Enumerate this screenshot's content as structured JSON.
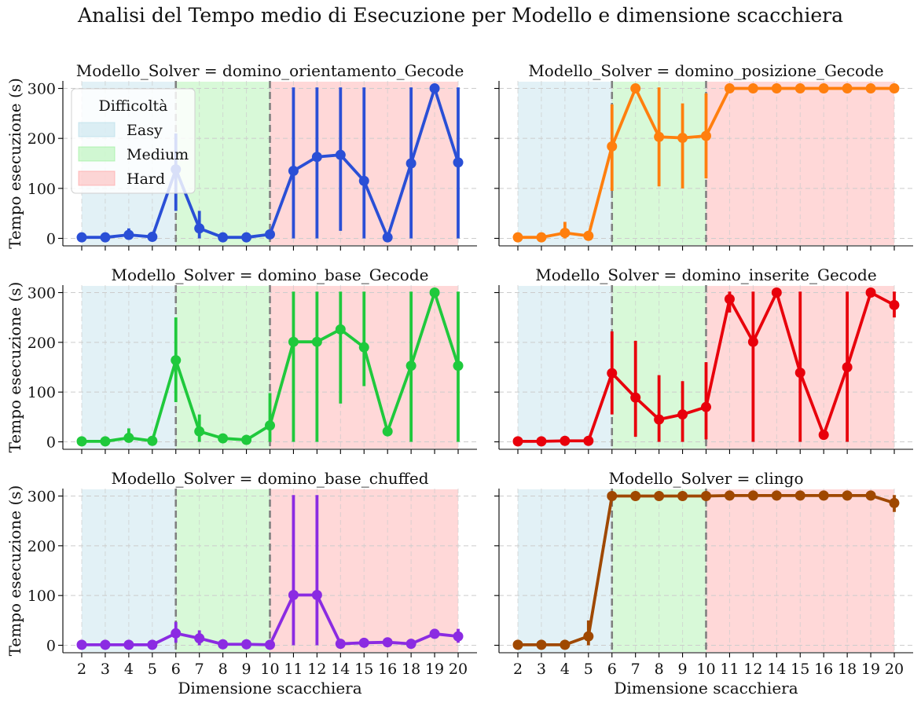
{
  "suptitle": "Analisi del Tempo medio di Esecuzione per Modello e dimensione scacchiera",
  "legend": {
    "title": "Difficoltà",
    "entries": [
      {
        "label": "Easy",
        "color": "#add8e6"
      },
      {
        "label": "Medium",
        "color": "#90ee90"
      },
      {
        "label": "Hard",
        "color": "#ff9999"
      }
    ]
  },
  "chart_data": [
    {
      "type": "line",
      "title": "Modello_Solver = domino_orientamento_Gecode",
      "xlabel": "",
      "ylabel": "Tempo esecuzione (s)",
      "categories": [
        "2",
        "3",
        "4",
        "5",
        "6",
        "7",
        "8",
        "9",
        "10",
        "11",
        "12",
        "14",
        "15",
        "16",
        "18",
        "19",
        "20"
      ],
      "values": [
        2,
        2,
        7,
        3,
        138,
        20,
        2,
        2,
        8,
        135,
        163,
        167,
        115,
        2,
        150,
        300,
        152
      ],
      "errors": [
        [
          0,
          5
        ],
        [
          0,
          4
        ],
        [
          0,
          20
        ],
        [
          0,
          5
        ],
        [
          55,
          210
        ],
        [
          0,
          55
        ],
        [
          0,
          5
        ],
        [
          0,
          5
        ],
        [
          0,
          14
        ],
        [
          0,
          302
        ],
        [
          0,
          302
        ],
        [
          15,
          302
        ],
        [
          0,
          302
        ],
        [
          0,
          5
        ],
        [
          0,
          302
        ],
        [
          298,
          302
        ],
        [
          0,
          302
        ]
      ],
      "color": "#2a4fd6",
      "ylim": [
        -15,
        315
      ],
      "yticks": [
        0,
        100,
        200,
        300
      ]
    },
    {
      "type": "line",
      "title": "Modello_Solver = domino_posizione_Gecode",
      "xlabel": "",
      "ylabel": "",
      "categories": [
        "2",
        "3",
        "4",
        "5",
        "6",
        "7",
        "8",
        "9",
        "10",
        "11",
        "12",
        "14",
        "15",
        "16",
        "18",
        "19",
        "20"
      ],
      "values": [
        2,
        2,
        11,
        5,
        184,
        300,
        203,
        201,
        205,
        300,
        300,
        300,
        300,
        300,
        300,
        300,
        300
      ],
      "errors": [
        [
          0,
          5
        ],
        [
          0,
          5
        ],
        [
          0,
          33
        ],
        [
          0,
          8
        ],
        [
          95,
          268
        ],
        [
          298,
          302
        ],
        [
          104,
          302
        ],
        [
          100,
          270
        ],
        [
          120,
          290
        ],
        [
          298,
          302
        ],
        [
          298,
          302
        ],
        [
          298,
          302
        ],
        [
          298,
          302
        ],
        [
          298,
          302
        ],
        [
          298,
          302
        ],
        [
          298,
          302
        ],
        [
          298,
          302
        ]
      ],
      "color": "#ff7f0e",
      "ylim": [
        -15,
        315
      ],
      "yticks": [
        0,
        100,
        200,
        300
      ]
    },
    {
      "type": "line",
      "title": "Modello_Solver = domino_base_Gecode",
      "xlabel": "",
      "ylabel": "Tempo esecuzione (s)",
      "categories": [
        "2",
        "3",
        "4",
        "5",
        "6",
        "7",
        "8",
        "9",
        "10",
        "11",
        "12",
        "14",
        "15",
        "16",
        "18",
        "19",
        "20"
      ],
      "values": [
        1,
        1,
        8,
        2,
        164,
        21,
        7,
        4,
        33,
        201,
        201,
        226,
        190,
        21,
        153,
        300,
        153
      ],
      "errors": [
        [
          0,
          3
        ],
        [
          0,
          3
        ],
        [
          0,
          27
        ],
        [
          0,
          5
        ],
        [
          80,
          250
        ],
        [
          0,
          55
        ],
        [
          0,
          14
        ],
        [
          0,
          8
        ],
        [
          0,
          98
        ],
        [
          0,
          302
        ],
        [
          0,
          302
        ],
        [
          77,
          302
        ],
        [
          112,
          302
        ],
        [
          15,
          27
        ],
        [
          0,
          302
        ],
        [
          298,
          302
        ],
        [
          0,
          302
        ]
      ],
      "color": "#1fc93c",
      "ylim": [
        -15,
        315
      ],
      "yticks": [
        0,
        100,
        200,
        300
      ]
    },
    {
      "type": "line",
      "title": "Modello_Solver = domino_inserite_Gecode",
      "xlabel": "",
      "ylabel": "",
      "categories": [
        "2",
        "3",
        "4",
        "5",
        "6",
        "7",
        "8",
        "9",
        "10",
        "11",
        "12",
        "14",
        "15",
        "16",
        "18",
        "19",
        "20"
      ],
      "values": [
        1,
        1,
        2,
        2,
        138,
        89,
        45,
        55,
        70,
        287,
        201,
        300,
        139,
        14,
        150,
        300,
        275
      ],
      "errors": [
        [
          0,
          3
        ],
        [
          0,
          3
        ],
        [
          0,
          5
        ],
        [
          0,
          5
        ],
        [
          55,
          222
        ],
        [
          10,
          203
        ],
        [
          0,
          134
        ],
        [
          0,
          122
        ],
        [
          5,
          160
        ],
        [
          260,
          302
        ],
        [
          0,
          302
        ],
        [
          298,
          302
        ],
        [
          0,
          302
        ],
        [
          10,
          20
        ],
        [
          0,
          302
        ],
        [
          298,
          302
        ],
        [
          250,
          302
        ]
      ],
      "color": "#e8000b",
      "ylim": [
        -15,
        315
      ],
      "yticks": [
        0,
        100,
        200,
        300
      ]
    },
    {
      "type": "line",
      "title": "Modello_Solver = domino_base_chuffed",
      "xlabel": "Dimensione scacchiera",
      "ylabel": "Tempo esecuzione (s)",
      "categories": [
        "2",
        "3",
        "4",
        "5",
        "6",
        "7",
        "8",
        "9",
        "10",
        "11",
        "12",
        "14",
        "15",
        "16",
        "18",
        "19",
        "20"
      ],
      "values": [
        1,
        1,
        1,
        1,
        24,
        14,
        2,
        2,
        1,
        101,
        101,
        3,
        5,
        6,
        3,
        23,
        18
      ],
      "errors": [
        [
          0,
          3
        ],
        [
          0,
          3
        ],
        [
          0,
          3
        ],
        [
          0,
          3
        ],
        [
          5,
          47
        ],
        [
          0,
          30
        ],
        [
          0,
          5
        ],
        [
          0,
          5
        ],
        [
          0,
          3
        ],
        [
          0,
          302
        ],
        [
          0,
          302
        ],
        [
          0,
          5
        ],
        [
          0,
          8
        ],
        [
          0,
          9
        ],
        [
          0,
          6
        ],
        [
          18,
          28
        ],
        [
          5,
          33
        ]
      ],
      "color": "#8b2be2",
      "ylim": [
        -15,
        315
      ],
      "yticks": [
        0,
        100,
        200,
        300
      ]
    },
    {
      "type": "line",
      "title": "Modello_Solver = clingo",
      "xlabel": "Dimensione scacchiera",
      "ylabel": "",
      "categories": [
        "2",
        "3",
        "4",
        "5",
        "6",
        "7",
        "8",
        "9",
        "10",
        "11",
        "12",
        "14",
        "15",
        "16",
        "18",
        "19",
        "20"
      ],
      "values": [
        1,
        1,
        1,
        18,
        300,
        300,
        300,
        300,
        300,
        301,
        301,
        301,
        301,
        301,
        301,
        301,
        286
      ],
      "errors": [
        [
          0,
          3
        ],
        [
          0,
          3
        ],
        [
          0,
          3
        ],
        [
          0,
          50
        ],
        [
          298,
          302
        ],
        [
          298,
          302
        ],
        [
          298,
          302
        ],
        [
          298,
          302
        ],
        [
          298,
          302
        ],
        [
          299,
          303
        ],
        [
          299,
          303
        ],
        [
          299,
          303
        ],
        [
          299,
          303
        ],
        [
          299,
          303
        ],
        [
          299,
          303
        ],
        [
          299,
          303
        ],
        [
          268,
          302
        ]
      ],
      "color": "#9f4800",
      "ylim": [
        -15,
        315
      ],
      "yticks": [
        0,
        100,
        200,
        300
      ]
    }
  ]
}
